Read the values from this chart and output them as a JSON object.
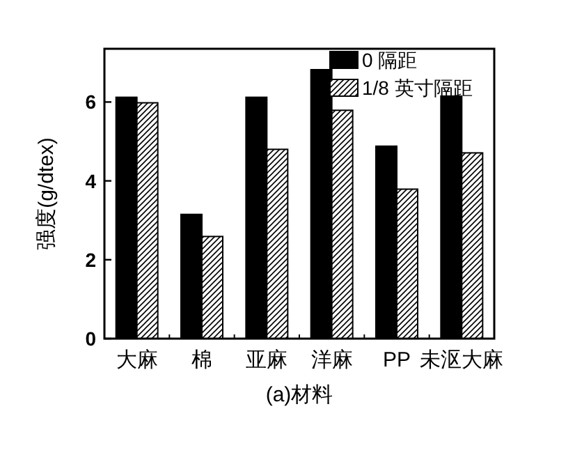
{
  "chart_data": {
    "type": "bar",
    "xlabel": "(a)材料",
    "ylabel": "强度(g/dtex)",
    "categories": [
      "大麻",
      "棉",
      "亚麻",
      "洋麻",
      "PP",
      "未沤大麻"
    ],
    "series": [
      {
        "name": "0 隔距",
        "color": "#000000",
        "values": [
          6.12,
          3.15,
          6.12,
          6.82,
          4.88,
          6.15
        ]
      },
      {
        "name": "1/8 英寸隔距",
        "color": "#ffffff",
        "values": [
          5.98,
          2.59,
          4.8,
          5.79,
          3.79,
          4.71
        ]
      }
    ],
    "ylim": [
      0,
      7.35
    ],
    "yticks": [
      0,
      2,
      4,
      6
    ],
    "legend": "top right",
    "grid": false
  }
}
